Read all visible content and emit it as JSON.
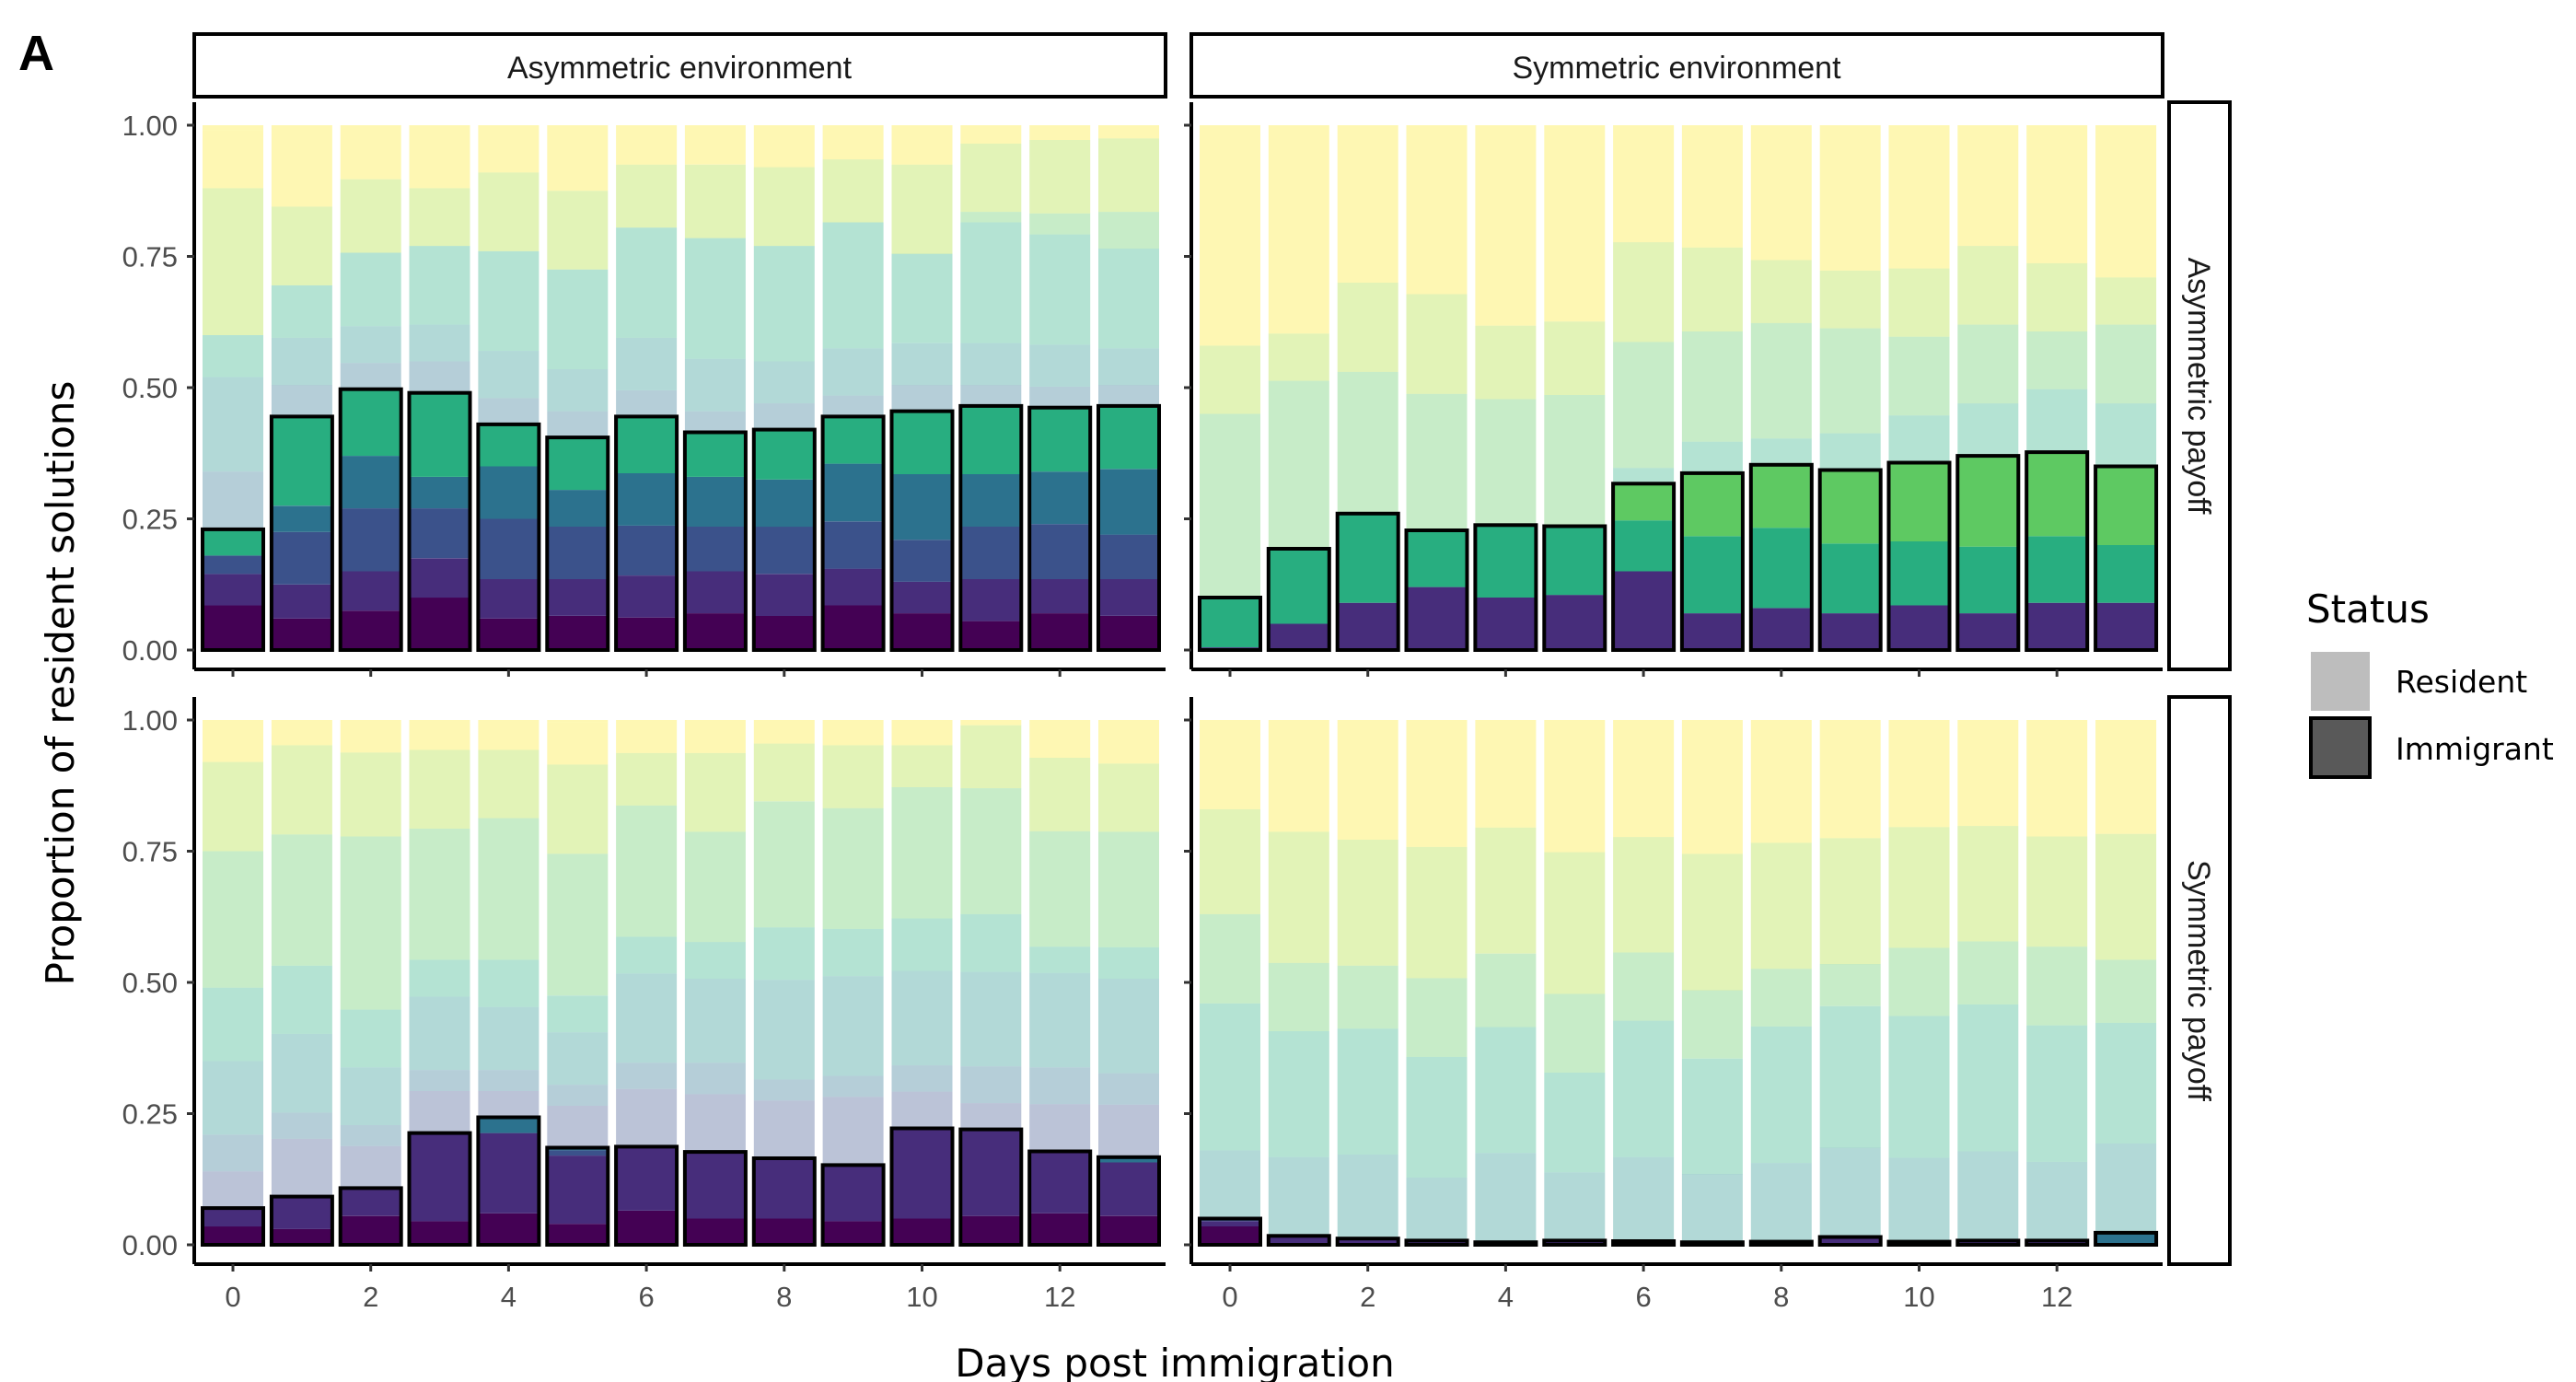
{
  "figure": {
    "panel_label": "A",
    "xlabel": "Days post immigration",
    "ylabel": "Proportion of resident solutions",
    "col_strips": [
      "Asymmetric environment",
      "Symmetric environment"
    ],
    "row_strips": [
      "Asymmetric payoff",
      "Symmetric payoff"
    ],
    "y_ticks": [
      "0.00",
      "0.25",
      "0.50",
      "0.75",
      "1.00"
    ],
    "x_ticks": [
      "0",
      "2",
      "4",
      "6",
      "8",
      "10",
      "12"
    ],
    "legend": {
      "title": "Status",
      "items": [
        {
          "label": "Resident",
          "color": "#bdbdbd"
        },
        {
          "label": "Immigrant",
          "color": "#595959"
        }
      ]
    }
  },
  "chart_data": {
    "type": "bar",
    "subtype": "stacked-faceted",
    "x": [
      0,
      1,
      2,
      3,
      4,
      5,
      6,
      7,
      8,
      9,
      10,
      11,
      12,
      13
    ],
    "ylim": [
      0,
      1
    ],
    "xlabel": "Days post immigration",
    "ylabel": "Proportion of resident solutions",
    "legend_placement": "right",
    "grid": false,
    "colors": {
      "palette": [
        "#440154",
        "#472d7b",
        "#3b528b",
        "#2c728e",
        "#21918c",
        "#28ae80",
        "#5ec962",
        "#addc30",
        "#fde725"
      ],
      "immigrant_alpha": 1.0,
      "resident_alpha": 0.35,
      "outline": "#000000"
    },
    "panels": [
      {
        "row": "Asymmetric payoff",
        "col": "Asymmetric environment",
        "immigrant_total": [
          0.23,
          0.445,
          0.497,
          0.49,
          0.43,
          0.405,
          0.445,
          0.415,
          0.42,
          0.445,
          0.455,
          0.465,
          0.462,
          0.465
        ],
        "immigrant_stack": [
          [
            0.085,
            0.06,
            0.075,
            0.1,
            0.06,
            0.065,
            0.062,
            0.07,
            0.065,
            0.085,
            0.07,
            0.055,
            0.07,
            0.065
          ],
          [
            0.06,
            0.065,
            0.075,
            0.075,
            0.075,
            0.07,
            0.08,
            0.08,
            0.08,
            0.07,
            0.06,
            0.08,
            0.065,
            0.07
          ],
          [
            0.035,
            0.1,
            0.12,
            0.095,
            0.115,
            0.1,
            0.095,
            0.085,
            0.09,
            0.09,
            0.08,
            0.1,
            0.105,
            0.085
          ],
          [
            0.0,
            0.05,
            0.1,
            0.06,
            0.1,
            0.07,
            0.1,
            0.095,
            0.09,
            0.11,
            0.125,
            0.1,
            0.1,
            0.125
          ],
          [
            0.0,
            0.0,
            0.0,
            0.0,
            0.0,
            0.0,
            0.0,
            0.0,
            0.0,
            0.0,
            0.0,
            0.0,
            0.0,
            0.0
          ],
          [
            0.05,
            0.17,
            0.127,
            0.16,
            0.08,
            0.1,
            0.108,
            0.085,
            0.095,
            0.09,
            0.12,
            0.13,
            0.122,
            0.12
          ]
        ],
        "resident_stack": [
          [
            0.0,
            0.0,
            0.0,
            0.0,
            0.0,
            0.0,
            0.0,
            0.0,
            0.0,
            0.0,
            0.0,
            0.0,
            0.0,
            0.0
          ],
          [
            0.11,
            0.06,
            0.05,
            0.06,
            0.05,
            0.05,
            0.05,
            0.04,
            0.05,
            0.04,
            0.05,
            0.04,
            0.04,
            0.04
          ],
          [
            0.18,
            0.09,
            0.07,
            0.07,
            0.09,
            0.08,
            0.1,
            0.1,
            0.08,
            0.09,
            0.08,
            0.08,
            0.08,
            0.07
          ],
          [
            0.08,
            0.1,
            0.14,
            0.15,
            0.19,
            0.19,
            0.21,
            0.23,
            0.22,
            0.24,
            0.17,
            0.23,
            0.21,
            0.19
          ],
          [
            0.0,
            0.0,
            0.0,
            0.0,
            0.0,
            0.0,
            0.0,
            0.0,
            0.0,
            0.0,
            0.0,
            0.02,
            0.04,
            0.07
          ],
          [
            0.28,
            0.15,
            0.14,
            0.11,
            0.15,
            0.15,
            0.12,
            0.14,
            0.15,
            0.12,
            0.17,
            0.13,
            0.14,
            0.14
          ],
          [
            0.11,
            0.155,
            0.153,
            0.12,
            0.09,
            0.125,
            0.085,
            0.075,
            0.085,
            0.065,
            0.075,
            0.035,
            0.028,
            0.055
          ]
        ]
      },
      {
        "row": "Asymmetric payoff",
        "col": "Symmetric environment",
        "immigrant_total": [
          0.1,
          0.193,
          0.26,
          0.228,
          0.238,
          0.236,
          0.317,
          0.337,
          0.353,
          0.343,
          0.357,
          0.37,
          0.377,
          0.35
        ],
        "immigrant_stack": [
          [
            0.0,
            0.0,
            0.0,
            0.0,
            0.0,
            0.0,
            0.0,
            0.0,
            0.0,
            0.0,
            0.0,
            0.0,
            0.0,
            0.0
          ],
          [
            0.005,
            0.05,
            0.09,
            0.12,
            0.1,
            0.105,
            0.15,
            0.07,
            0.08,
            0.07,
            0.085,
            0.07,
            0.09,
            0.09
          ],
          [
            0.0,
            0.0,
            0.0,
            0.0,
            0.0,
            0.0,
            0.0,
            0.0,
            0.0,
            0.0,
            0.0,
            0.0,
            0.0,
            0.0
          ],
          [
            0.0,
            0.0,
            0.0,
            0.0,
            0.0,
            0.0,
            0.0,
            0.0,
            0.0,
            0.0,
            0.0,
            0.0,
            0.0,
            0.0
          ],
          [
            0.0,
            0.0,
            0.0,
            0.0,
            0.0,
            0.0,
            0.0,
            0.0,
            0.0,
            0.0,
            0.0,
            0.0,
            0.0,
            0.0
          ],
          [
            0.095,
            0.143,
            0.17,
            0.108,
            0.138,
            0.131,
            0.097,
            0.147,
            0.153,
            0.133,
            0.122,
            0.127,
            0.127,
            0.11
          ],
          [
            0.0,
            0.0,
            0.0,
            0.0,
            0.0,
            0.0,
            0.07,
            0.12,
            0.12,
            0.14,
            0.15,
            0.173,
            0.16,
            0.15
          ]
        ],
        "resident_stack": [
          [
            0.0,
            0.0,
            0.0,
            0.0,
            0.0,
            0.0,
            0.0,
            0.0,
            0.0,
            0.0,
            0.0,
            0.0,
            0.0,
            0.0
          ],
          [
            0.0,
            0.0,
            0.0,
            0.0,
            0.0,
            0.0,
            0.0,
            0.0,
            0.0,
            0.0,
            0.0,
            0.0,
            0.0,
            0.0
          ],
          [
            0.0,
            0.0,
            0.0,
            0.0,
            0.0,
            0.0,
            0.03,
            0.06,
            0.05,
            0.07,
            0.09,
            0.1,
            0.12,
            0.12
          ],
          [
            0.35,
            0.32,
            0.27,
            0.26,
            0.24,
            0.25,
            0.24,
            0.21,
            0.22,
            0.2,
            0.15,
            0.15,
            0.11,
            0.15
          ],
          [
            0.13,
            0.09,
            0.17,
            0.19,
            0.14,
            0.14,
            0.19,
            0.16,
            0.12,
            0.11,
            0.13,
            0.15,
            0.13,
            0.09
          ],
          [
            0.42,
            0.397,
            0.3,
            0.322,
            0.382,
            0.374,
            0.253,
            0.273,
            0.257,
            0.277,
            0.273,
            0.23,
            0.263,
            0.29
          ]
        ]
      },
      {
        "row": "Symmetric payoff",
        "col": "Asymmetric environment",
        "immigrant_total": [
          0.07,
          0.092,
          0.108,
          0.213,
          0.243,
          0.185,
          0.187,
          0.177,
          0.165,
          0.152,
          0.222,
          0.22,
          0.178,
          0.167
        ],
        "immigrant_stack": [
          [
            0.035,
            0.03,
            0.055,
            0.045,
            0.06,
            0.04,
            0.065,
            0.05,
            0.05,
            0.045,
            0.05,
            0.055,
            0.06,
            0.055
          ],
          [
            0.035,
            0.062,
            0.053,
            0.168,
            0.153,
            0.13,
            0.122,
            0.127,
            0.115,
            0.107,
            0.172,
            0.165,
            0.118,
            0.102
          ],
          [
            0.0,
            0.0,
            0.0,
            0.0,
            0.0,
            0.01,
            0.0,
            0.0,
            0.0,
            0.0,
            0.0,
            0.0,
            0.0,
            0.0
          ],
          [
            0.0,
            0.0,
            0.0,
            0.0,
            0.03,
            0.005,
            0.0,
            0.0,
            0.0,
            0.0,
            0.0,
            0.0,
            0.0,
            0.01
          ]
        ],
        "resident_stack": [
          [
            0.0,
            0.0,
            0.0,
            0.0,
            0.0,
            0.0,
            0.0,
            0.0,
            0.0,
            0.0,
            0.0,
            0.0,
            0.0,
            0.0
          ],
          [
            0.07,
            0.11,
            0.08,
            0.08,
            0.05,
            0.08,
            0.11,
            0.11,
            0.11,
            0.13,
            0.07,
            0.05,
            0.09,
            0.1
          ],
          [
            0.07,
            0.05,
            0.04,
            0.04,
            0.04,
            0.04,
            0.05,
            0.06,
            0.04,
            0.04,
            0.05,
            0.07,
            0.07,
            0.06
          ],
          [
            0.14,
            0.15,
            0.11,
            0.14,
            0.12,
            0.1,
            0.17,
            0.16,
            0.19,
            0.19,
            0.18,
            0.18,
            0.18,
            0.18
          ],
          [
            0.14,
            0.13,
            0.11,
            0.07,
            0.09,
            0.07,
            0.07,
            0.07,
            0.1,
            0.09,
            0.1,
            0.11,
            0.05,
            0.06
          ],
          [
            0.26,
            0.25,
            0.33,
            0.25,
            0.27,
            0.27,
            0.25,
            0.21,
            0.24,
            0.23,
            0.25,
            0.24,
            0.22,
            0.22
          ],
          [
            0.17,
            0.17,
            0.16,
            0.15,
            0.13,
            0.17,
            0.1,
            0.15,
            0.11,
            0.12,
            0.08,
            0.12,
            0.14,
            0.13
          ],
          [
            0.08,
            0.08,
            0.07,
            0.05,
            0.05,
            0.08,
            0.07,
            0.07,
            0.06,
            0.07,
            0.1,
            0.07,
            0.08,
            0.09
          ]
        ]
      },
      {
        "row": "Symmetric payoff",
        "col": "Symmetric environment",
        "immigrant_total": [
          0.05,
          0.017,
          0.012,
          0.008,
          0.005,
          0.008,
          0.007,
          0.005,
          0.006,
          0.015,
          0.006,
          0.008,
          0.008,
          0.023
        ],
        "immigrant_stack": [
          [
            0.035,
            0.0,
            0.0,
            0.0,
            0.0,
            0.0,
            0.0,
            0.0,
            0.0,
            0.0,
            0.0,
            0.0,
            0.0,
            0.0
          ],
          [
            0.01,
            0.017,
            0.012,
            0.008,
            0.005,
            0.008,
            0.007,
            0.005,
            0.006,
            0.015,
            0.006,
            0.008,
            0.008,
            0.0
          ],
          [
            0.005,
            0.0,
            0.0,
            0.0,
            0.0,
            0.0,
            0.0,
            0.0,
            0.0,
            0.0,
            0.0,
            0.0,
            0.0,
            0.0
          ],
          [
            0.0,
            0.0,
            0.0,
            0.0,
            0.0,
            0.0,
            0.0,
            0.0,
            0.0,
            0.0,
            0.0,
            0.0,
            0.0,
            0.023
          ]
        ],
        "resident_stack": [
          [
            0.0,
            0.0,
            0.0,
            0.0,
            0.0,
            0.0,
            0.0,
            0.0,
            0.0,
            0.0,
            0.0,
            0.0,
            0.0,
            0.0
          ],
          [
            0.13,
            0.15,
            0.16,
            0.12,
            0.17,
            0.13,
            0.16,
            0.13,
            0.15,
            0.17,
            0.16,
            0.17,
            0.15,
            0.17
          ],
          [
            0.28,
            0.24,
            0.24,
            0.23,
            0.24,
            0.19,
            0.26,
            0.22,
            0.26,
            0.27,
            0.27,
            0.28,
            0.26,
            0.23
          ],
          [
            0.17,
            0.13,
            0.12,
            0.15,
            0.14,
            0.15,
            0.13,
            0.13,
            0.11,
            0.08,
            0.13,
            0.12,
            0.15,
            0.12
          ],
          [
            0.2,
            0.25,
            0.24,
            0.25,
            0.24,
            0.27,
            0.22,
            0.26,
            0.24,
            0.24,
            0.23,
            0.22,
            0.21,
            0.24
          ],
          [
            0.17,
            0.213,
            0.228,
            0.242,
            0.205,
            0.252,
            0.223,
            0.255,
            0.234,
            0.225,
            0.234,
            0.202,
            0.222,
            0.217
          ]
        ]
      }
    ]
  }
}
